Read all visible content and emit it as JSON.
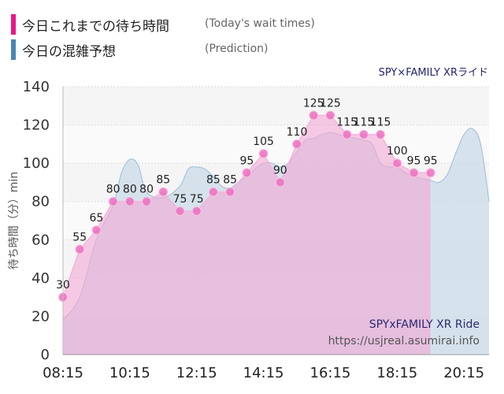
{
  "legend": {
    "actual_jp": "今日これまでの待ち時間",
    "actual_en": "(Today's wait times)",
    "predict_jp": "今日の混雑予想",
    "predict_en": "(Prediction)"
  },
  "colors": {
    "actual": "#e8178a",
    "predict": "#4a86b4",
    "actual_fill": "#f2a9d6",
    "predict_fill": "#c9dbe8",
    "point": "#ec6fc0"
  },
  "chart_data": {
    "type": "area",
    "title": "SPY×FAMILY XRライド",
    "ylabel": "待ち時間（分）min",
    "ylim": [
      0,
      140
    ],
    "yticks": [
      0,
      20,
      40,
      60,
      80,
      100,
      120,
      140
    ],
    "xlim": [
      "08:15",
      "21:00"
    ],
    "xticks": [
      "08:15",
      "10:15",
      "12:15",
      "14:15",
      "16:15",
      "18:15",
      "20:15"
    ],
    "watermark": [
      "SPYxFAMILY XR Ride",
      "https://usjreal.asumirai.info"
    ],
    "series": [
      {
        "name": "今日これまでの待ち時間",
        "x": [
          "08:15",
          "08:45",
          "09:15",
          "09:45",
          "10:15",
          "10:45",
          "11:15",
          "11:45",
          "12:15",
          "12:45",
          "13:15",
          "13:45",
          "14:15",
          "14:45",
          "15:15",
          "15:45",
          "16:15",
          "16:45",
          "17:15",
          "17:45",
          "18:15",
          "18:45",
          "19:15"
        ],
        "values": [
          30,
          55,
          65,
          80,
          80,
          80,
          85,
          75,
          75,
          85,
          85,
          95,
          105,
          90,
          110,
          125,
          125,
          115,
          115,
          115,
          100,
          95,
          95
        ]
      },
      {
        "name": "今日の混雑予想",
        "x": [
          "08:15",
          "08:45",
          "09:15",
          "09:45",
          "10:00",
          "10:15",
          "10:30",
          "10:45",
          "11:15",
          "11:45",
          "12:00",
          "12:15",
          "12:30",
          "12:45",
          "13:00",
          "13:15",
          "13:30",
          "13:45",
          "14:00",
          "14:15",
          "14:30",
          "14:45",
          "15:00",
          "15:15",
          "15:30",
          "15:45",
          "16:00",
          "16:15",
          "16:30",
          "16:45",
          "17:00",
          "17:15",
          "17:30",
          "17:45",
          "18:00",
          "18:15",
          "18:30",
          "18:45",
          "19:00",
          "19:15",
          "19:30",
          "19:45",
          "20:00",
          "20:15",
          "20:30",
          "20:45",
          "21:00"
        ],
        "values": [
          18,
          30,
          60,
          78,
          95,
          102,
          99,
          85,
          82,
          88,
          97,
          98,
          97,
          93,
          88,
          87,
          90,
          93,
          97,
          100,
          100,
          98,
          100,
          106,
          112,
          113,
          115,
          116,
          115,
          114,
          113,
          112,
          110,
          100,
          98,
          98,
          95,
          93,
          92,
          91,
          90,
          94,
          105,
          115,
          118,
          110,
          80
        ]
      }
    ]
  }
}
